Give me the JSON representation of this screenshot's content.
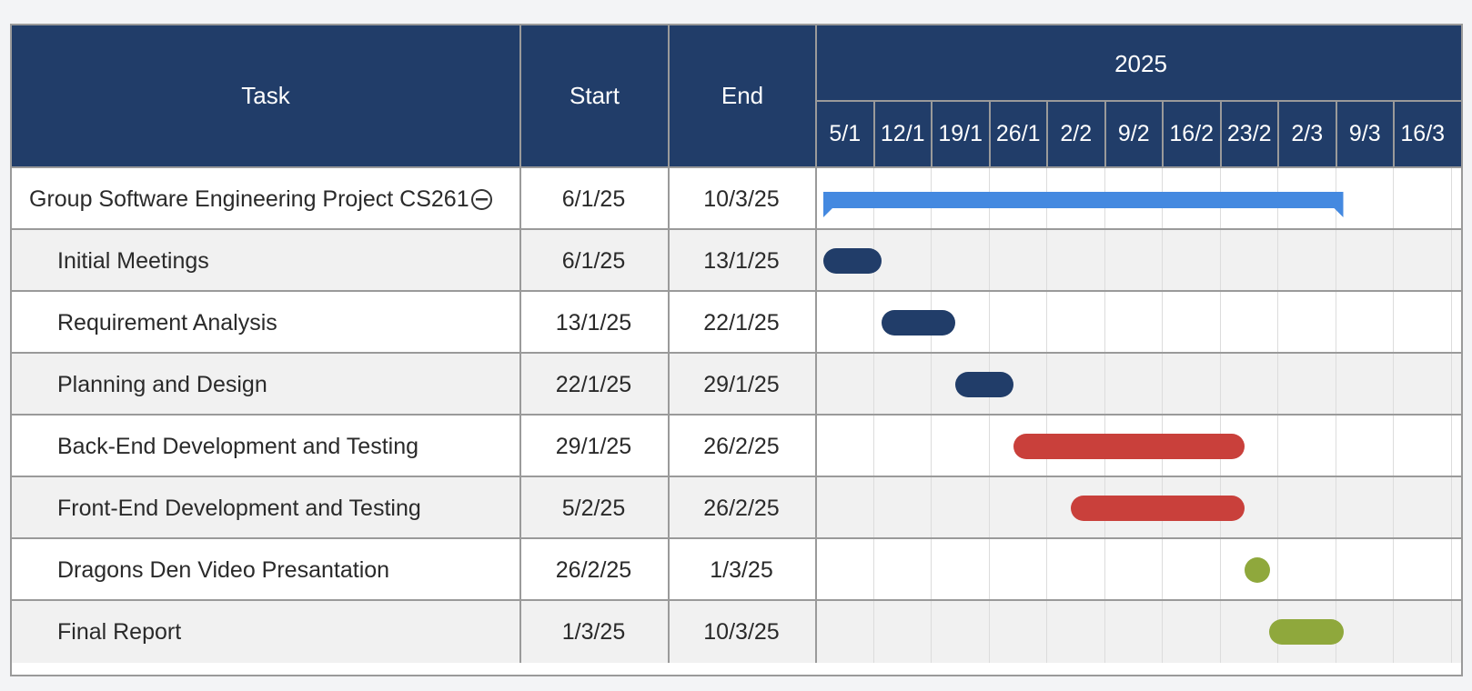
{
  "columns": {
    "task": "Task",
    "start": "Start",
    "end": "End"
  },
  "timeline": {
    "year": "2025",
    "weeks": [
      "5/1",
      "12/1",
      "19/1",
      "26/1",
      "2/2",
      "9/2",
      "16/2",
      "23/2",
      "2/3",
      "9/3",
      "16/3"
    ]
  },
  "colors": {
    "header": "#213d69",
    "summary_bar": "#4489e0",
    "planning": "#213d69",
    "development": "#c9403b",
    "delivery": "#8fa83c"
  },
  "tasks": [
    {
      "name": "Group Software Engineering Project CS261",
      "start": "6/1/25",
      "end": "10/3/25",
      "summary": true,
      "color": "#4489e0",
      "toggle_icon": "collapse-minus-icon"
    },
    {
      "name": "Initial Meetings",
      "start": "6/1/25",
      "end": "13/1/25",
      "color": "#213d69"
    },
    {
      "name": "Requirement Analysis",
      "start": "13/1/25",
      "end": "22/1/25",
      "color": "#213d69"
    },
    {
      "name": "Planning and Design",
      "start": "22/1/25",
      "end": "29/1/25",
      "color": "#213d69"
    },
    {
      "name": "Back-End Development and Testing",
      "start": "29/1/25",
      "end": "26/2/25",
      "color": "#c9403b"
    },
    {
      "name": "Front-End Development and Testing",
      "start": "5/2/25",
      "end": "26/2/25",
      "color": "#c9403b"
    },
    {
      "name": "Dragons Den Video Presantation",
      "start": "26/2/25",
      "end": "1/3/25",
      "color": "#8fa83c"
    },
    {
      "name": "Final Report",
      "start": "1/3/25",
      "end": "10/3/25",
      "color": "#8fa83c"
    }
  ]
}
